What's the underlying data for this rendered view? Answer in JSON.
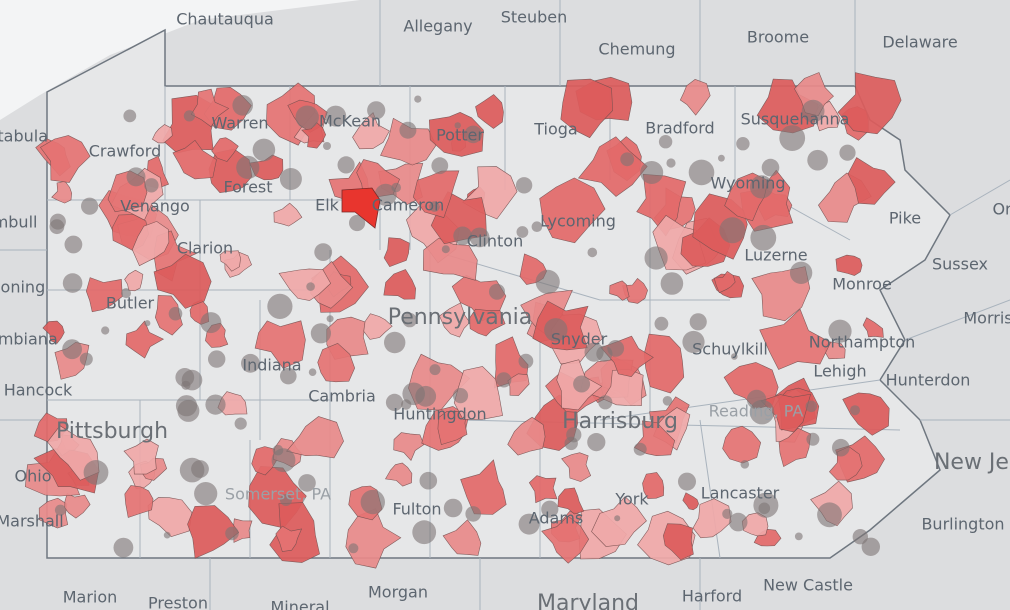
{
  "labels": [
    "Chautauqua",
    "Allegany",
    "Steuben",
    "Chemung",
    "Broome",
    "Delaware",
    "Warren",
    "McKean",
    "Potter",
    "Tioga",
    "Bradford",
    "Susquehanna",
    "Crawford",
    "Forest",
    "Elk",
    "Cameron",
    "Wyoming",
    "Pike",
    "Orange",
    "Venango",
    "Clarion",
    "Lycoming",
    "Clinton",
    "Luzerne",
    "Sussex",
    "Monroe",
    "Morris",
    "Butler",
    "Pennsylvania",
    "Snyder",
    "Schuylkill",
    "Northampton",
    "Lehigh",
    "Hunterdon",
    "Indiana",
    "Cambria",
    "Huntingdon",
    "Harrisburg",
    "Reading, PA",
    "Pittsburgh",
    "Ohio",
    "Hancock",
    "Somerset, PA",
    "Fulton",
    "Adams",
    "York",
    "Lancaster",
    "Burlington",
    "New Jersey",
    "Marshall",
    "Columbiana",
    "Mahoning",
    "Trumbull",
    "Ashtabula",
    "Marion",
    "Preston",
    "Mineral",
    "Morgan",
    "Maryland",
    "Harford",
    "New Castle"
  ]
}
